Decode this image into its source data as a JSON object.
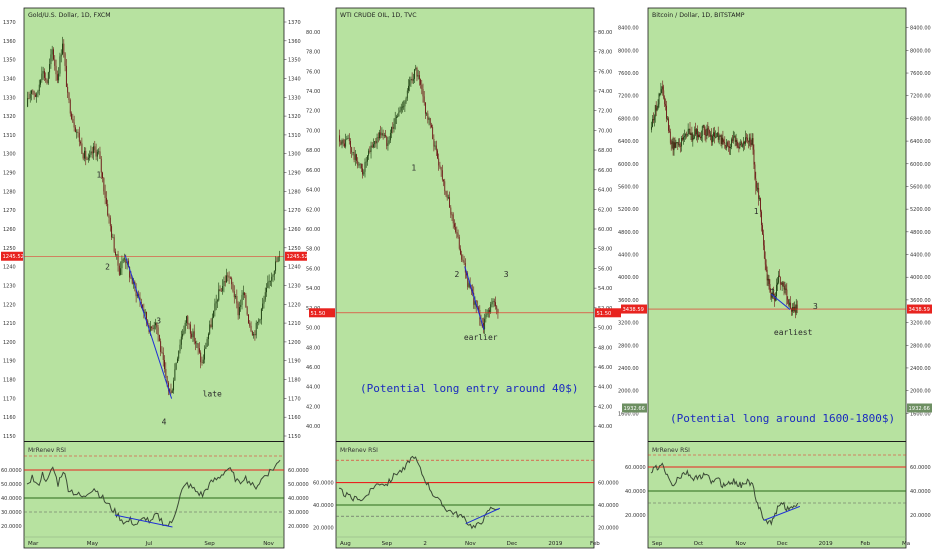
{
  "colors": {
    "background": "#b7e2a0",
    "frame": "#1b1b1b",
    "upper_band_line": "#e8231f",
    "lower_band_line": "#2b6a1a",
    "price_line": "#e8231f",
    "candle_up": "#1a3b0e",
    "candle_down": "#6b1414",
    "trendline": "#1f2fd6",
    "rsi_line": "#3b4a36",
    "price_tag": "#e8231f",
    "rsi_tag": "#6d8f62"
  },
  "chart_data": [
    {
      "type": "candlestick",
      "title": "Gold/U.S. Dollar, 1D, FXCM",
      "price_axis": {
        "min": 1150,
        "max": 1370,
        "ticks": [
          1150,
          1160,
          1170,
          1180,
          1190,
          1200,
          1210,
          1220,
          1230,
          1240,
          1250,
          1260,
          1270,
          1280,
          1290,
          1300,
          1310,
          1320,
          1330,
          1340,
          1350,
          1360,
          1370
        ]
      },
      "x_tick_labels": [
        "Mar",
        "May",
        "Jul",
        "Sep",
        "Nov"
      ],
      "current_price": "1245.52",
      "close_path": [
        1325,
        1335,
        1330,
        1345,
        1338,
        1355,
        1340,
        1360,
        1330,
        1318,
        1310,
        1300,
        1296,
        1302,
        1300,
        1282,
        1265,
        1250,
        1238,
        1246,
        1236,
        1228,
        1222,
        1214,
        1206,
        1212,
        1196,
        1180,
        1172,
        1190,
        1203,
        1212,
        1205,
        1198,
        1188,
        1202,
        1212,
        1224,
        1230,
        1236,
        1228,
        1216,
        1226,
        1212,
        1204,
        1212,
        1222,
        1232,
        1240,
        1245.52
      ],
      "annotations": [
        "1",
        "2",
        "3",
        "4",
        "late"
      ],
      "rsi": {
        "label": "MrRenev RSI",
        "axis_ticks": [
          "20.0000",
          "30.0000",
          "40.0000",
          "50.0000",
          "60.0000"
        ],
        "range": [
          15,
          75
        ],
        "upper_level": 60,
        "lower_level": 40,
        "dashed_levels": [
          70,
          30
        ],
        "current_tag": "",
        "values": [
          50,
          55,
          48,
          57,
          52,
          62,
          50,
          60,
          47,
          44,
          42,
          40,
          45,
          47,
          43,
          38,
          34,
          30,
          26,
          22,
          24,
          21,
          23,
          26,
          22,
          28,
          24,
          20,
          22,
          34,
          45,
          50,
          47,
          44,
          42,
          48,
          52,
          54,
          58,
          61,
          56,
          50,
          55,
          52,
          47,
          51,
          56,
          59,
          62,
          67
        ]
      }
    },
    {
      "type": "candlestick",
      "title": "WTI CRUDE OIL, 1D, TVC",
      "price_axis": {
        "min": 39,
        "max": 81,
        "ticks": [
          40.0,
          42.0,
          44.0,
          46.0,
          48.0,
          50.0,
          52.0,
          54.0,
          56.0,
          58.0,
          60.0,
          62.0,
          64.0,
          66.0,
          68.0,
          70.0,
          72.0,
          74.0,
          76.0,
          78.0,
          80.0
        ]
      },
      "x_tick_labels": [
        "Aug",
        "Sep",
        "2",
        "Nov",
        "Dec",
        "2019",
        "Feb"
      ],
      "current_price": "51.50",
      "close_path": [
        69.5,
        68.5,
        69.2,
        67.5,
        66.8,
        65.8,
        67.2,
        68.5,
        69.2,
        69.9,
        68.8,
        70.2,
        71.3,
        72.3,
        73.4,
        75.2,
        76.1,
        74.4,
        72.1,
        70.5,
        68.2,
        66.4,
        64.3,
        62.2,
        60.4,
        58.3,
        56.2,
        54.1,
        52.8,
        51.4,
        50.2,
        51.8,
        52.6,
        51.5
      ],
      "annotations": [
        "1",
        "2",
        "3",
        "earlier",
        "(Potential long entry around 40$)"
      ],
      "rsi": {
        "label": "MrRenev RSI",
        "axis_ticks": [
          "20.0000",
          "40.0000",
          "60.0000"
        ],
        "range": [
          15,
          90
        ],
        "upper_level": 60,
        "lower_level": 40,
        "dashed_levels": [
          80,
          30
        ],
        "current_tag": "",
        "values": [
          55,
          50,
          48,
          45,
          47,
          44,
          50,
          55,
          58,
          60,
          58,
          62,
          68,
          70,
          72,
          80,
          84,
          75,
          65,
          58,
          50,
          45,
          40,
          36,
          34,
          32,
          30,
          26,
          22,
          20,
          24,
          28,
          36,
          38,
          36
        ]
      }
    },
    {
      "type": "candlestick",
      "title": "Bitcoin / Dollar, 1D, BITSTAMP",
      "price_axis": {
        "min": 1200,
        "max": 8500,
        "ticks": [
          1600.0,
          2000.0,
          2400.0,
          2800.0,
          3200.0,
          3600.0,
          4000.0,
          4400.0,
          4800.0,
          5200.0,
          5600.0,
          6000.0,
          6400.0,
          6800.0,
          7200.0,
          7600.0,
          8000.0,
          8400.0
        ]
      },
      "x_tick_labels": [
        "Sep",
        "Oct",
        "Nov",
        "Dec",
        "2019",
        "Feb",
        "Ma"
      ],
      "current_price": "3438.59",
      "rsi_tag": "1932.66",
      "close_path": [
        6600,
        6900,
        7100,
        7350,
        6950,
        6500,
        6300,
        6400,
        6350,
        6500,
        6600,
        6450,
        6550,
        6500,
        6600,
        6550,
        6450,
        6500,
        6480,
        6380,
        6300,
        6350,
        6420,
        6380,
        6350,
        6400,
        6400,
        6380,
        5600,
        5400,
        4500,
        4000,
        3700,
        3600,
        4000,
        3900,
        3750,
        3500,
        3400,
        3438.59
      ],
      "annotations": [
        "1",
        "2",
        "3",
        "earliest",
        "(Potential long around 1600-1800$)"
      ],
      "rsi": {
        "label": "MrRenev RSI",
        "axis_ticks": [
          "20.0000",
          "40.0000",
          "60.0000"
        ],
        "range": [
          5,
          75
        ],
        "upper_level": 60,
        "lower_level": 40,
        "dashed_levels": [
          70,
          30
        ],
        "current_tag": "",
        "values": [
          55,
          60,
          58,
          62,
          55,
          48,
          45,
          50,
          52,
          55,
          54,
          50,
          52,
          51,
          53,
          52,
          48,
          50,
          49,
          45,
          46,
          47,
          48,
          46,
          45,
          48,
          47,
          46,
          30,
          25,
          18,
          15,
          14,
          20,
          28,
          30,
          26,
          24,
          28,
          30
        ]
      }
    }
  ]
}
